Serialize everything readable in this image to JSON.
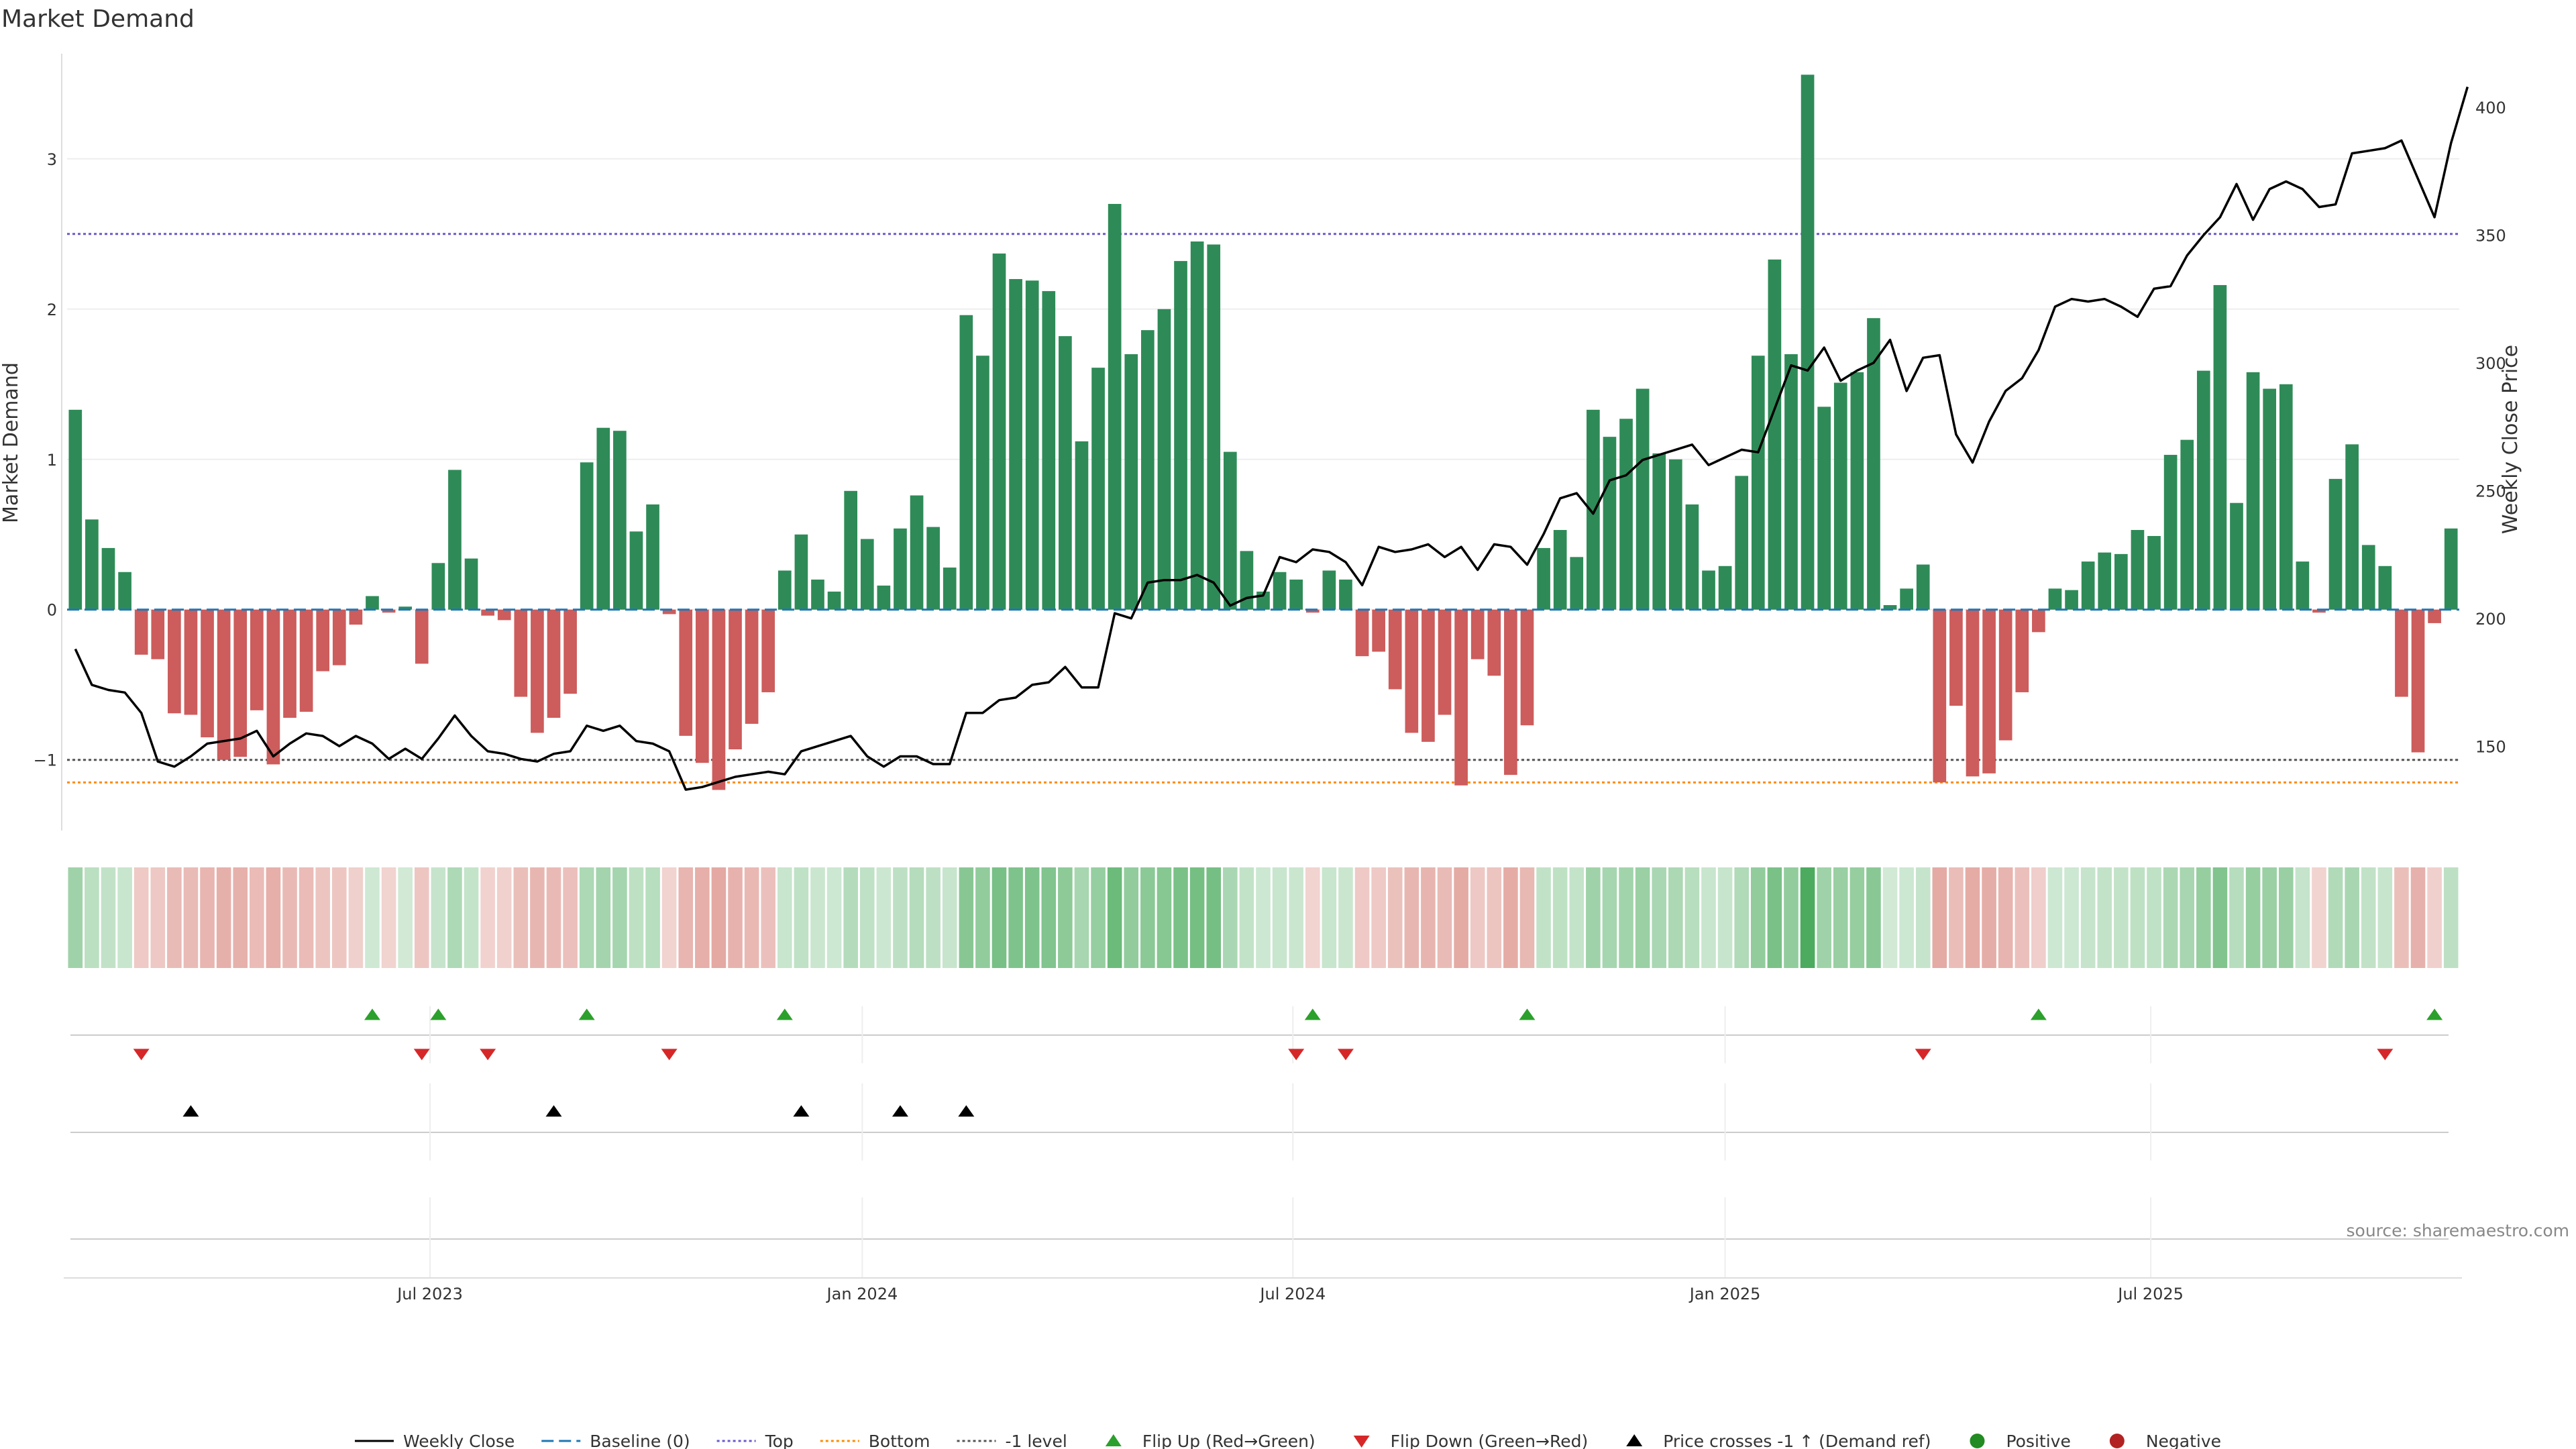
{
  "chart_data": {
    "type": "bar",
    "title": "Market Demand",
    "ylabel": "Market Demand",
    "y2label": "Weekly Close Price",
    "ylim": [
      -1.47,
      3.7
    ],
    "y2lim": [
      117,
      421
    ],
    "yticks": [
      -1,
      0,
      1,
      2,
      3
    ],
    "y2ticks": [
      150,
      200,
      250,
      300,
      350,
      400
    ],
    "x_week_index_range": [
      0,
      143
    ],
    "xticks": [
      {
        "label": "Jul 2023",
        "week": 21.5
      },
      {
        "label": "Jan 2024",
        "week": 47.7
      },
      {
        "label": "Jul 2024",
        "week": 73.8
      },
      {
        "label": "Jan 2025",
        "week": 100.0
      },
      {
        "label": "Jul 2025",
        "week": 125.8
      }
    ],
    "reference_lines": {
      "baseline": 0,
      "top": 2.5,
      "bottom": -1.15,
      "minus_one_level": -1
    },
    "demand": [
      1.33,
      0.6,
      0.41,
      0.25,
      -0.3,
      -0.33,
      -0.69,
      -0.7,
      -0.85,
      -1.0,
      -0.98,
      -0.67,
      -1.03,
      -0.72,
      -0.68,
      -0.41,
      -0.37,
      -0.1,
      0.09,
      -0.02,
      0.02,
      -0.36,
      0.31,
      0.93,
      0.34,
      -0.04,
      -0.07,
      -0.58,
      -0.82,
      -0.72,
      -0.56,
      0.98,
      1.21,
      1.19,
      0.52,
      0.7,
      -0.03,
      -0.84,
      -1.02,
      -1.2,
      -0.93,
      -0.76,
      -0.55,
      0.26,
      0.5,
      0.2,
      0.12,
      0.79,
      0.47,
      0.16,
      0.54,
      0.76,
      0.55,
      0.28,
      1.96,
      1.69,
      2.37,
      2.2,
      2.19,
      2.12,
      1.82,
      1.12,
      1.61,
      2.7,
      1.7,
      1.86,
      2.0,
      2.32,
      2.45,
      2.43,
      1.05,
      0.39,
      0.12,
      0.25,
      0.2,
      -0.02,
      0.26,
      0.2,
      -0.31,
      -0.28,
      -0.53,
      -0.82,
      -0.88,
      -0.7,
      -1.17,
      -0.33,
      -0.44,
      -1.1,
      -0.77,
      0.41,
      0.53,
      0.35,
      1.33,
      1.15,
      1.27,
      1.47,
      1.04,
      1.0,
      0.7,
      0.26,
      0.29,
      0.89,
      1.69,
      2.33,
      1.7,
      3.56,
      1.35,
      1.51,
      1.58,
      1.94,
      0.03,
      0.14,
      0.3,
      -1.15,
      -0.64,
      -1.11,
      -1.09,
      -0.87,
      -0.55,
      -0.15,
      0.14,
      0.13,
      0.32,
      0.38,
      0.37,
      0.53,
      0.49,
      1.03,
      1.13,
      1.59,
      2.16,
      0.71,
      1.58,
      1.47,
      1.5,
      0.32,
      -0.02,
      0.87,
      1.1,
      0.43,
      0.29,
      -0.58,
      -0.95,
      -0.09,
      0.54
    ],
    "close": [
      188,
      174,
      172,
      171,
      163,
      144,
      142,
      146,
      151,
      152,
      153,
      156,
      146,
      151,
      155,
      154,
      150,
      154,
      151,
      145,
      149,
      145,
      153,
      162,
      154,
      148,
      147,
      145,
      144,
      147,
      148,
      158,
      156,
      158,
      152,
      151,
      148,
      133,
      134,
      136,
      138,
      139,
      140,
      139,
      148,
      150,
      152,
      154,
      146,
      142,
      146,
      146,
      143,
      143,
      163,
      163,
      168,
      169,
      174,
      175,
      181,
      173,
      173,
      202,
      200,
      214,
      215,
      215,
      217,
      214,
      205,
      208,
      209,
      224,
      222,
      227,
      226,
      222,
      213,
      228,
      226,
      227,
      229,
      224,
      228,
      219,
      229,
      228,
      221,
      233,
      247,
      249,
      241,
      254,
      256,
      262,
      264,
      266,
      268,
      260,
      263,
      266,
      265,
      282,
      299,
      297,
      306,
      293,
      297,
      300,
      309,
      289,
      302,
      303,
      272,
      261,
      277,
      289,
      294,
      305,
      322,
      325,
      324,
      325,
      322,
      318,
      329,
      330,
      342,
      350,
      357,
      370,
      356,
      368,
      371,
      368,
      361,
      362,
      382,
      383,
      384,
      387,
      372,
      357,
      386,
      408
    ],
    "flip_up_weeks": [
      18,
      22,
      31,
      43,
      75,
      88,
      119,
      143
    ],
    "flip_down_weeks": [
      4,
      21,
      25,
      36,
      74,
      77,
      112,
      140
    ],
    "price_cross_weeks": [
      7,
      29,
      44,
      50,
      54
    ],
    "strip_tile_color_by_sign": {
      "positive": "#2f9e44",
      "negative": "#c0392b"
    },
    "colors": {
      "positive_bar": "#2e8b57",
      "negative_bar": "#cd5c5c",
      "close_line": "#000000",
      "baseline": "#1f77b4",
      "top_line": "#6a5acd",
      "bottom_line": "#ff8c00",
      "minus_one_line": "#555555",
      "flip_up": "#2ca02c",
      "flip_down": "#d62728",
      "price_cross": "#000000",
      "positive_dot": "#228b22",
      "negative_dot": "#b22222"
    },
    "source": "source: sharemaestro.com",
    "legend": [
      {
        "label": "Weekly Close",
        "kind": "line",
        "color": "#000000",
        "dash": ""
      },
      {
        "label": "Baseline (0)",
        "kind": "line",
        "color": "#1f77b4",
        "dash": "18 8"
      },
      {
        "label": "Top",
        "kind": "line",
        "color": "#6a5acd",
        "dash": "4 4"
      },
      {
        "label": "Bottom",
        "kind": "line",
        "color": "#ff8c00",
        "dash": "4 4"
      },
      {
        "label": "-1 level",
        "kind": "line",
        "color": "#555555",
        "dash": "4 4"
      },
      {
        "label": "Flip Up (Red→Green)",
        "kind": "tri-up",
        "color": "#2ca02c"
      },
      {
        "label": "Flip Down (Green→Red)",
        "kind": "tri-down",
        "color": "#d62728"
      },
      {
        "label": "Price crosses -1 ↑ (Demand ref)",
        "kind": "tri-up",
        "color": "#000000"
      },
      {
        "label": "Positive",
        "kind": "dot",
        "color": "#228b22"
      },
      {
        "label": "Negative",
        "kind": "dot",
        "color": "#b22222"
      }
    ]
  }
}
